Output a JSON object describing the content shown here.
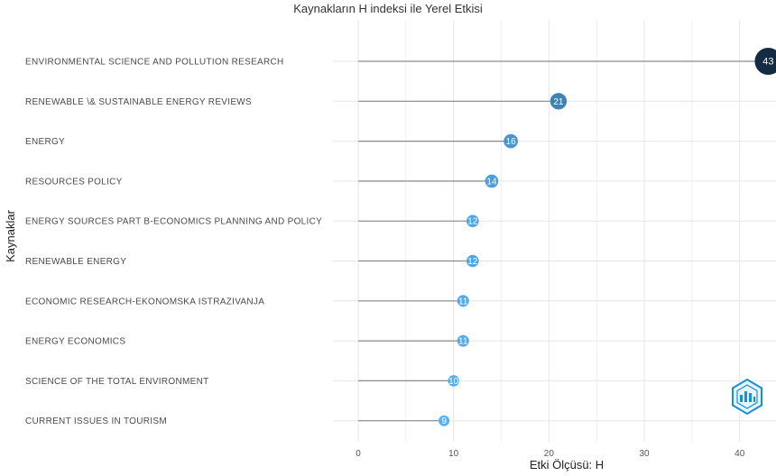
{
  "chart_data": {
    "type": "lollipop",
    "title": "Kaynakların H indeksi ile Yerel Etkisi",
    "xlabel": "Etki Ölçüsü: H",
    "ylabel": "Kaynaklar",
    "xlim": [
      0,
      44
    ],
    "xticks": [
      0,
      10,
      20,
      30,
      40
    ],
    "grid": true,
    "legend": "none",
    "categories": [
      "ENVIRONMENTAL SCIENCE AND POLLUTION RESEARCH",
      "RENEWABLE \\& SUSTAINABLE ENERGY REVIEWS",
      "ENERGY",
      "RESOURCES POLICY",
      "ENERGY SOURCES PART B-ECONOMICS PLANNING AND POLICY",
      "RENEWABLE ENERGY",
      "ECONOMIC RESEARCH-EKONOMSKA ISTRAZIVANJA",
      "ENERGY ECONOMICS",
      "SCIENCE OF THE TOTAL ENVIRONMENT",
      "CURRENT ISSUES IN TOURISM"
    ],
    "values": [
      43,
      21,
      16,
      14,
      12,
      12,
      11,
      11,
      10,
      9
    ],
    "color_scale": {
      "low": "#56B1F7",
      "high": "#132B43"
    },
    "segment_color": "#8a8a8a",
    "grid_color": "#e6e6e6"
  },
  "watermark": {
    "icon": "bibliometrix-logo-icon",
    "color": "#1a8fd6"
  }
}
